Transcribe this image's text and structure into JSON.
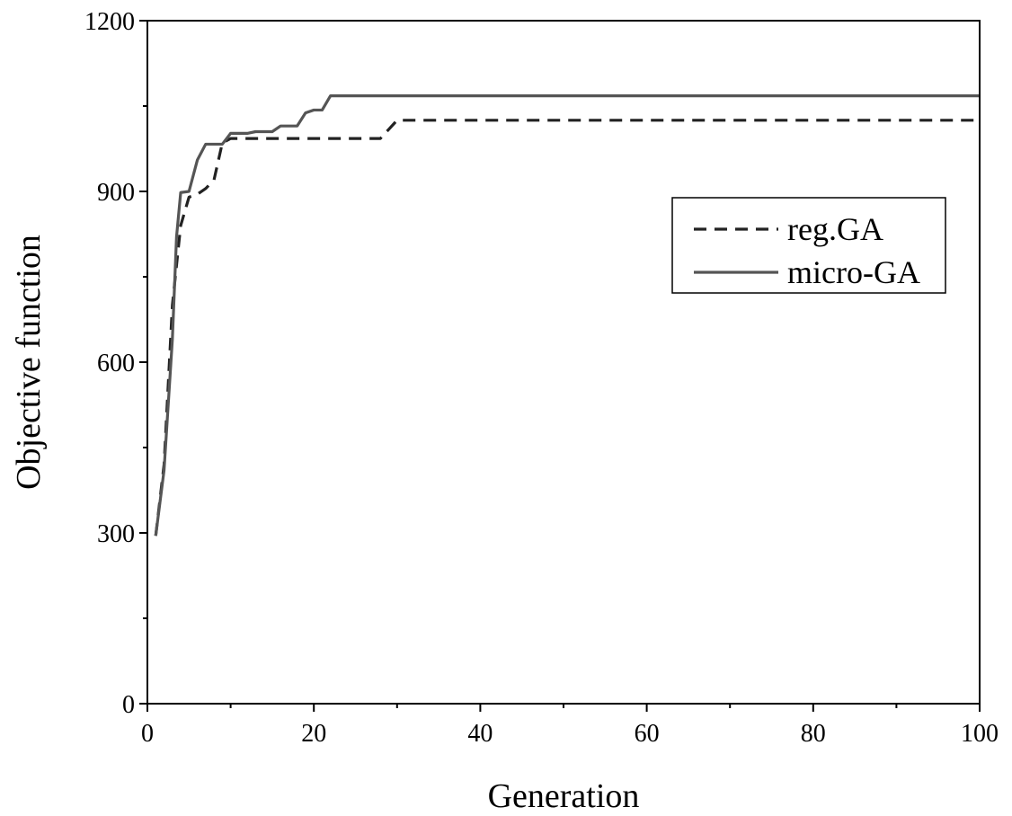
{
  "chart_data": {
    "type": "line",
    "title": "",
    "xlabel": "Generation",
    "ylabel": "Objective function",
    "xlim": [
      0,
      100
    ],
    "ylim": [
      0,
      1200
    ],
    "xticks": [
      0,
      20,
      40,
      60,
      80,
      100
    ],
    "yticks": [
      0,
      300,
      600,
      900,
      1200
    ],
    "grid": false,
    "legend_position": "upper-right",
    "series": [
      {
        "name": "reg.GA",
        "style": "dashed",
        "color": "#222222",
        "x": [
          1,
          2,
          3,
          4,
          5,
          6,
          7,
          8,
          9,
          10,
          15,
          20,
          25,
          28,
          30,
          40,
          60,
          80,
          100
        ],
        "y": [
          295,
          420,
          700,
          840,
          890,
          895,
          905,
          920,
          985,
          993,
          993,
          993,
          993,
          993,
          1025,
          1025,
          1025,
          1025,
          1025
        ]
      },
      {
        "name": "micro-GA",
        "style": "solid",
        "color": "#555555",
        "x": [
          1,
          2,
          3,
          3.5,
          4,
          5,
          6,
          7,
          8,
          9,
          10,
          12,
          13,
          15,
          16,
          18,
          19,
          20,
          21,
          22,
          30,
          40,
          60,
          80,
          100
        ],
        "y": [
          295,
          410,
          640,
          820,
          898,
          900,
          955,
          983,
          983,
          983,
          1002,
          1002,
          1005,
          1005,
          1015,
          1015,
          1038,
          1043,
          1043,
          1068,
          1068,
          1068,
          1068,
          1068,
          1068
        ]
      }
    ]
  }
}
